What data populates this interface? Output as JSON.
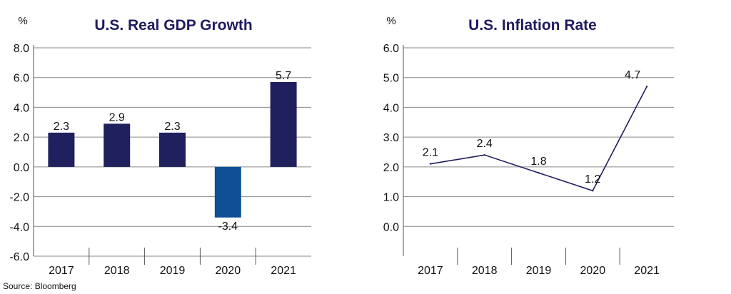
{
  "source_note": "Source: Bloomberg",
  "chart_data": [
    {
      "type": "bar",
      "title": "U.S. Real GDP Growth",
      "unit_label": "%",
      "categories": [
        "2017",
        "2018",
        "2019",
        "2020",
        "2021"
      ],
      "values": [
        2.3,
        2.9,
        2.3,
        -3.4,
        5.7
      ],
      "data_labels": [
        "2.3",
        "2.9",
        "2.3",
        "-3.4",
        "5.7"
      ],
      "y_ticks": [
        "8.0",
        "6.0",
        "4.0",
        "2.0",
        "0.0",
        "-2.0",
        "-4.0",
        "-6.0"
      ],
      "ylim": [
        -6,
        8
      ],
      "grid": true,
      "colors": {
        "positive": "#20205e",
        "negative": "#0e4f96"
      }
    },
    {
      "type": "line",
      "title": "U.S. Inflation Rate",
      "unit_label": "%",
      "categories": [
        "2017",
        "2018",
        "2019",
        "2020",
        "2021"
      ],
      "values": [
        2.1,
        2.4,
        1.8,
        1.2,
        4.7
      ],
      "data_labels": [
        "2.1",
        "2.4",
        "1.8",
        "1.2",
        "4.7"
      ],
      "y_ticks": [
        "6.0",
        "5.0",
        "4.0",
        "3.0",
        "2.0",
        "1.0",
        "0.0"
      ],
      "ylim": [
        -1,
        6
      ],
      "grid": true,
      "colors": {
        "line": "#20205e"
      }
    }
  ]
}
